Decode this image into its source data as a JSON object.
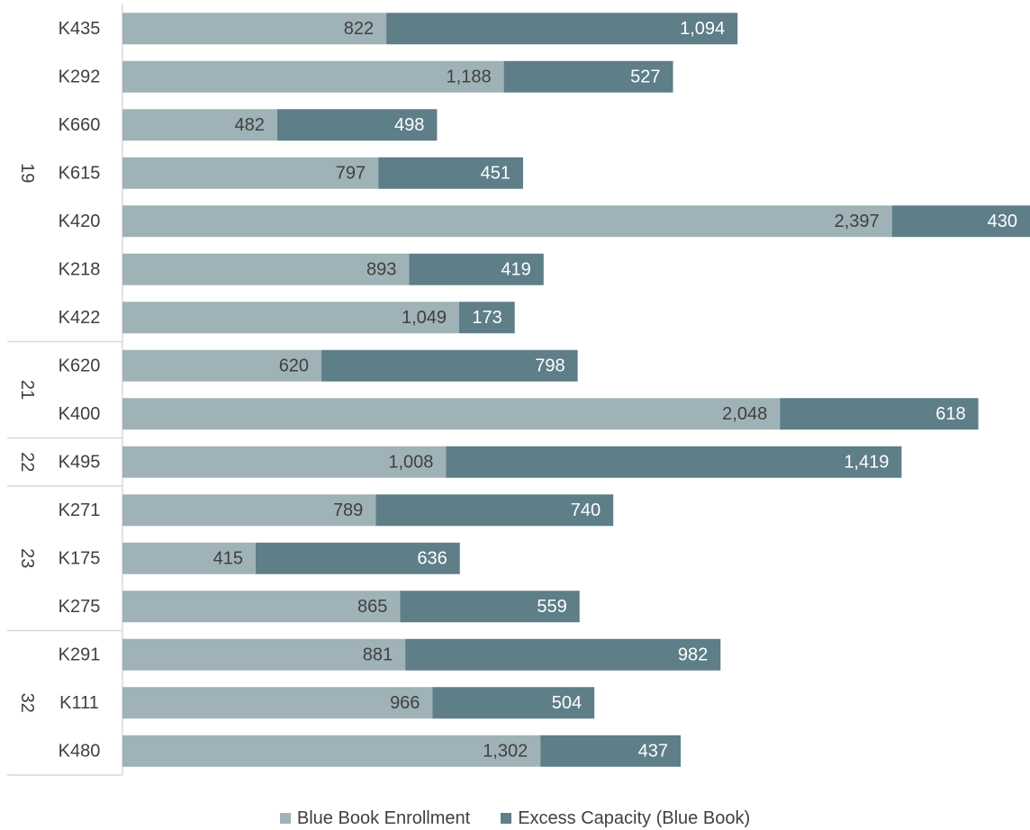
{
  "chart_data": {
    "type": "bar",
    "orientation": "horizontal",
    "stacked": true,
    "groups": [
      {
        "label": "19",
        "categories": [
          "K435",
          "K292",
          "K660",
          "K615",
          "K420",
          "K218",
          "K422"
        ]
      },
      {
        "label": "21",
        "categories": [
          "K620",
          "K400"
        ]
      },
      {
        "label": "22",
        "categories": [
          "K495"
        ]
      },
      {
        "label": "23",
        "categories": [
          "K271",
          "K175",
          "K275"
        ]
      },
      {
        "label": "32",
        "categories": [
          "K291",
          "K111",
          "K480"
        ]
      }
    ],
    "categories": [
      "K435",
      "K292",
      "K660",
      "K615",
      "K420",
      "K218",
      "K422",
      "K620",
      "K400",
      "K495",
      "K271",
      "K175",
      "K275",
      "K291",
      "K111",
      "K480"
    ],
    "series": [
      {
        "name": "Blue Book Enrollment",
        "color": "#9fb2b8",
        "values": [
          822,
          1188,
          482,
          797,
          2397,
          893,
          1049,
          620,
          2048,
          1008,
          789,
          415,
          865,
          881,
          966,
          1302
        ],
        "labels": [
          "822",
          "1,188",
          "482",
          "797",
          "2,397",
          "893",
          "1,049",
          "620",
          "2,048",
          "1,008",
          "789",
          "415",
          "865",
          "881",
          "966",
          "1,302"
        ]
      },
      {
        "name": "Excess Capacity (Blue Book)",
        "color": "#5e7e88",
        "values": [
          1094,
          527,
          498,
          451,
          430,
          419,
          173,
          798,
          618,
          1419,
          740,
          636,
          559,
          982,
          504,
          437
        ],
        "labels": [
          "1,094",
          "527",
          "498",
          "451",
          "430",
          "419",
          "173",
          "798",
          "618",
          "1,419",
          "740",
          "636",
          "559",
          "982",
          "504",
          "437"
        ]
      }
    ],
    "xlim": [
      0,
      2827
    ],
    "grid": false,
    "legend_position": "bottom-center"
  }
}
